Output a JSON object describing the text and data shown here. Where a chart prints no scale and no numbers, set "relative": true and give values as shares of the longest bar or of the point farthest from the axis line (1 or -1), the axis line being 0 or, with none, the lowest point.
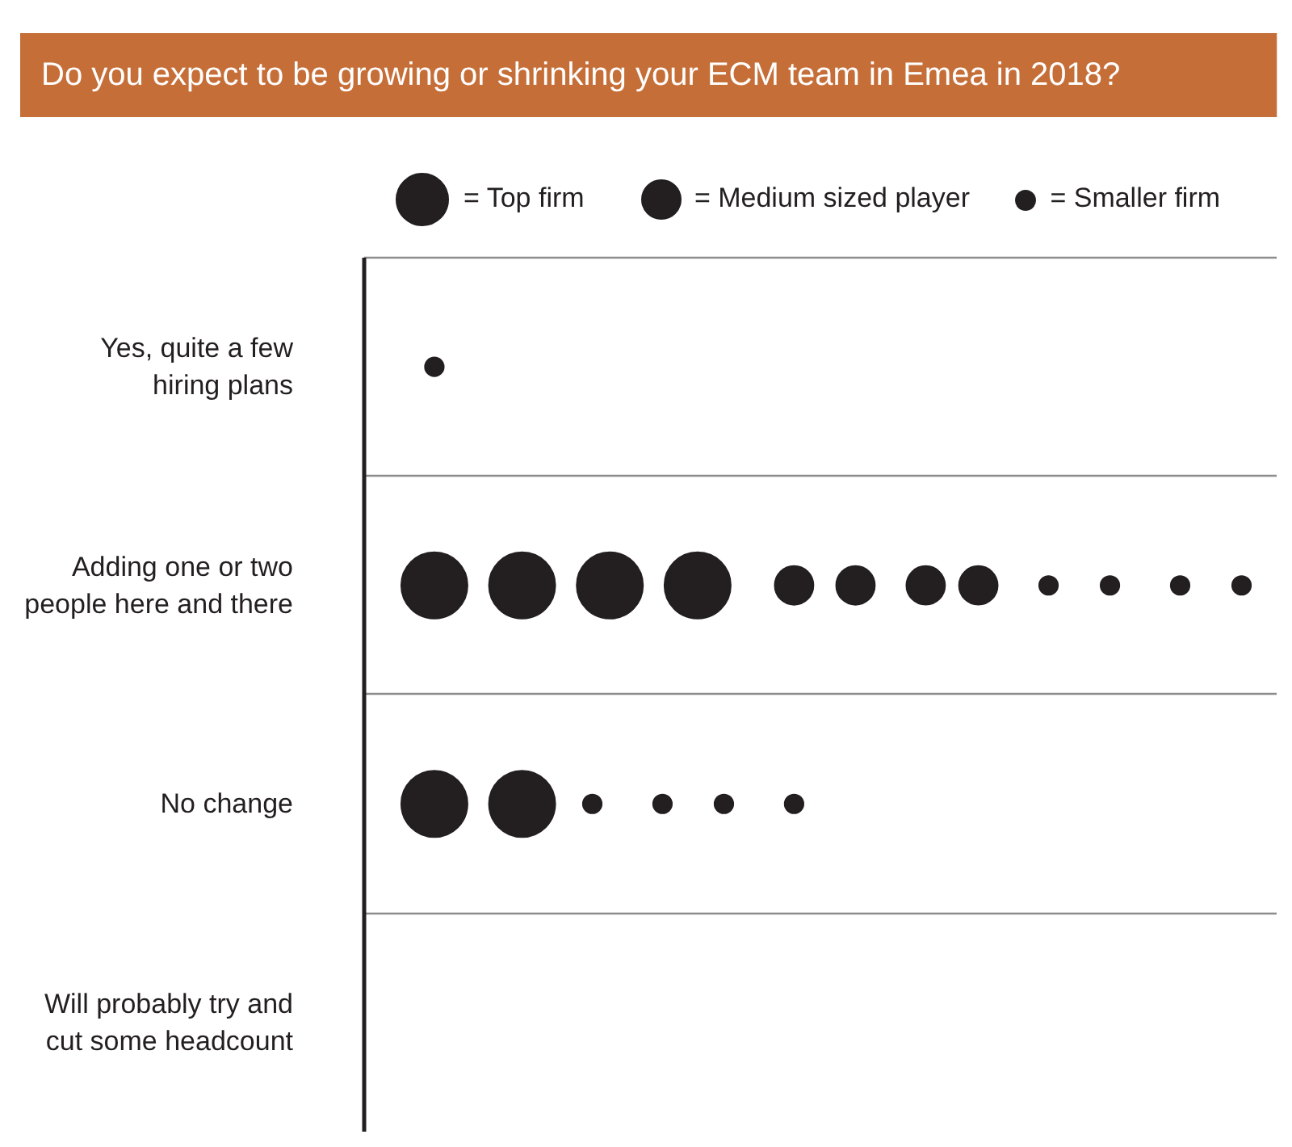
{
  "chart_data": {
    "type": "bubble",
    "title": "Do you expect to be growing or shrinking your ECM team in Emea in 2018?",
    "orientation": "horizontal",
    "relative": true,
    "categories": [
      "Yes, quite a few\nhiring plans",
      "Adding one or two\npeople here and there",
      "No change",
      "Will probably try and\ncut some headcount"
    ],
    "series": [
      {
        "name": "= Top firm",
        "color": "#231f20",
        "x": [
          "Adding one or two\npeople here and there",
          "Adding one or two\npeople here and there",
          "Adding one or two\npeople here and there",
          "Adding one or two\npeople here and there",
          "No change",
          "No change"
        ],
        "values": [
          0.08,
          0.18,
          0.28,
          0.38,
          0.08,
          0.18
        ],
        "sizes": [
          1,
          1,
          1,
          1,
          1,
          1
        ]
      },
      {
        "name": "= Medium sized player",
        "color": "#231f20",
        "x": [
          "Adding one or two\npeople here and there",
          "Adding one or two\npeople here and there",
          "Adding one or two\npeople here and there",
          "Adding one or two\npeople here and there"
        ],
        "values": [
          0.49,
          0.56,
          0.64,
          0.7
        ],
        "sizes": [
          0.34,
          0.34,
          0.34,
          0.34
        ]
      },
      {
        "name": "= Smaller firm",
        "color": "#231f20",
        "x": [
          "Yes, quite a few\nhiring plans",
          "Adding one or two\npeople here and there",
          "Adding one or two\npeople here and there",
          "Adding one or two\npeople here and there",
          "Adding one or two\npeople here and there",
          "No change",
          "No change",
          "No change",
          "No change"
        ],
        "values": [
          0.08,
          0.78,
          0.85,
          0.93,
          1,
          0.26,
          0.34,
          0.41,
          0.49
        ],
        "sizes": [
          0.08,
          0.08,
          0.08,
          0.08,
          0.08,
          0.08,
          0.08,
          0.08,
          0.08
        ]
      }
    ],
    "marker": "circle",
    "grid": "y",
    "legend": "top",
    "tick_labels": "y"
  }
}
